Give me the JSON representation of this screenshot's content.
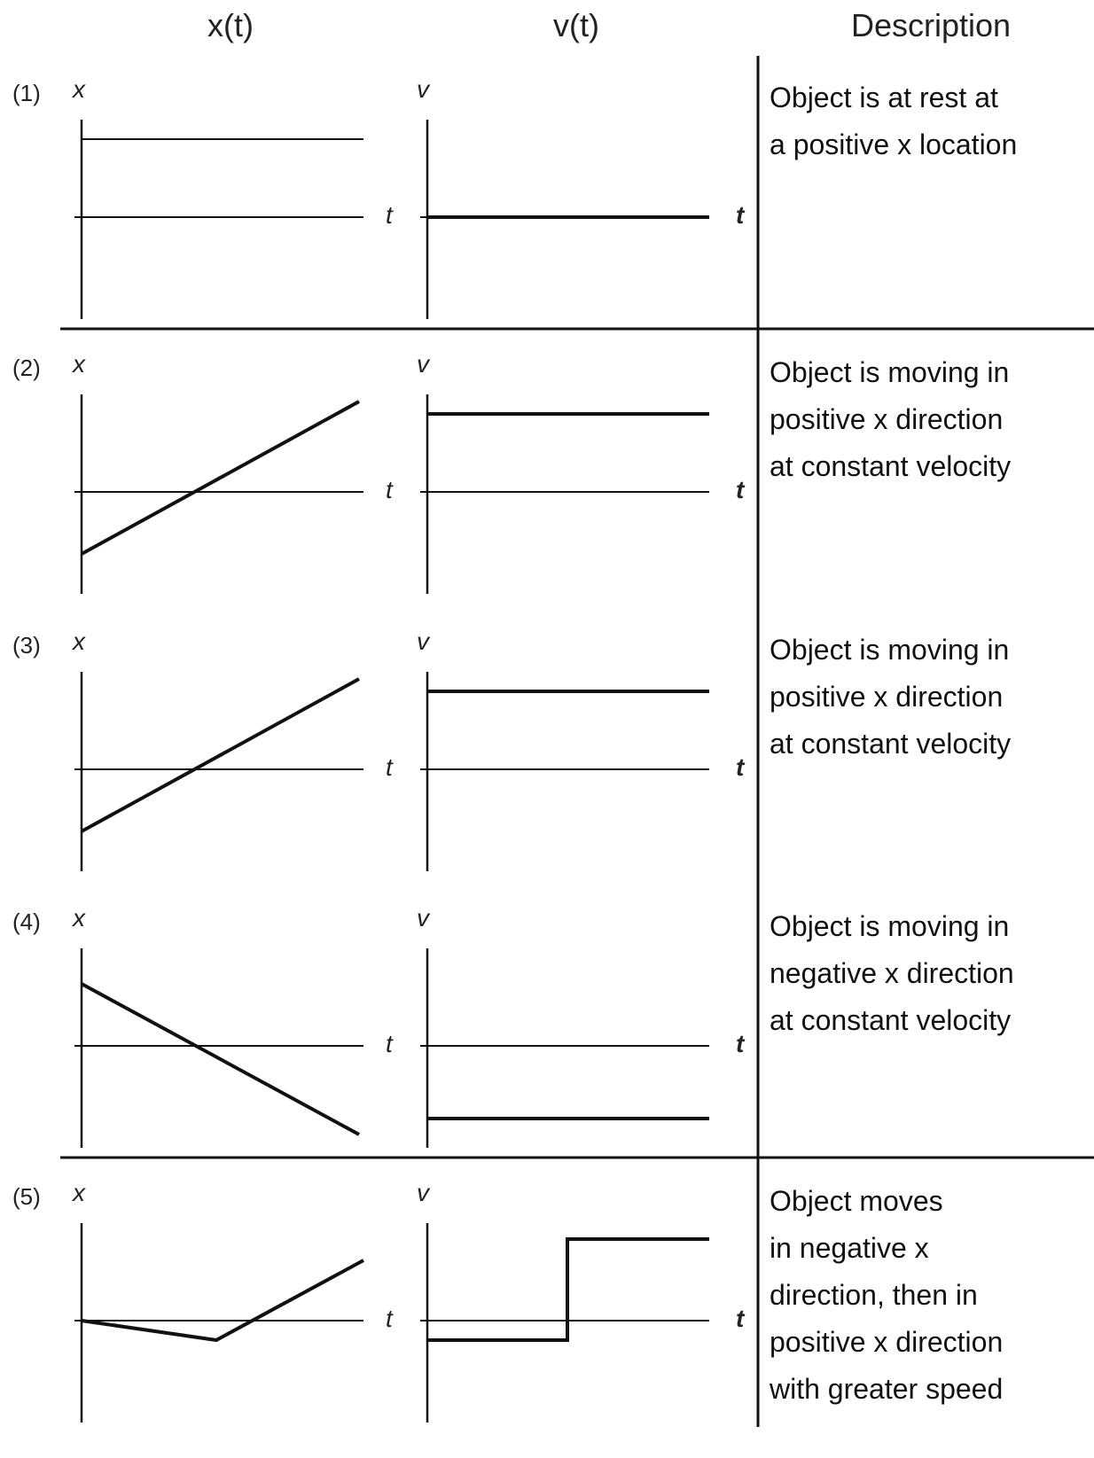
{
  "headers": {
    "x": "x(t)",
    "v": "v(t)",
    "desc": "Description"
  },
  "axis_labels": {
    "x": "x",
    "v": "v",
    "t": "t"
  },
  "rows": [
    {
      "num": "(1)",
      "x_motion": "constant-positive",
      "v_motion": "zero",
      "description": [
        "Object is at rest at",
        "a positive x location"
      ]
    },
    {
      "num": "(2)",
      "x_motion": "increasing-line",
      "v_motion": "constant-positive",
      "description": [
        "Object is moving in",
        "positive x direction",
        "at constant velocity"
      ]
    },
    {
      "num": "(3)",
      "x_motion": "increasing-line",
      "v_motion": "constant-positive",
      "description": [
        "Object is moving in",
        "positive x direction",
        "at constant velocity"
      ]
    },
    {
      "num": "(4)",
      "x_motion": "decreasing-line",
      "v_motion": "constant-negative",
      "description": [
        "Object is moving in",
        "negative x direction",
        "at constant velocity"
      ]
    },
    {
      "num": "(5)",
      "x_motion": "down-then-up",
      "v_motion": "negative-then-larger-positive",
      "description": [
        "Object moves",
        "in negative x",
        "direction, then in",
        "positive x direction",
        "with greater speed"
      ]
    }
  ]
}
